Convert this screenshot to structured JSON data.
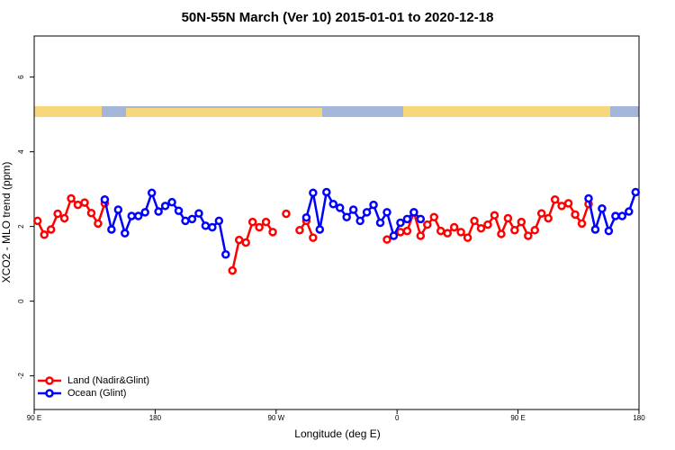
{
  "chart_data": {
    "type": "line",
    "title": "50N-55N March (Ver 10)   2015-01-01 to 2020-12-18",
    "x_label": "Longitude (deg E)",
    "y_label": "XCO2 - MLO trend (ppm)",
    "xlim": [
      90,
      540
    ],
    "xticks": [
      {
        "value": 90,
        "label": "90 E"
      },
      {
        "value": 180,
        "label": "180"
      },
      {
        "value": 270,
        "label": "90 W"
      },
      {
        "value": 360,
        "label": "0"
      },
      {
        "value": 450,
        "label": "90 E"
      },
      {
        "value": 540,
        "label": "180"
      }
    ],
    "ylim": [
      -2.9,
      7.1
    ],
    "yticks": [
      -2,
      0,
      2,
      4,
      6
    ],
    "legend": "bottom-left",
    "x": [
      92.5,
      97.5,
      102.5,
      107.5,
      112.5,
      117.5,
      122.5,
      127.5,
      132.5,
      137.5,
      142.5,
      147.5,
      152.5,
      157.5,
      162.5,
      167.5,
      172.5,
      177.5,
      182.5,
      187.5,
      192.5,
      197.5,
      202.5,
      207.5,
      212.5,
      217.5,
      222.5,
      227.5,
      232.5,
      237.5,
      242.5,
      247.5,
      252.5,
      257.5,
      262.5,
      267.5,
      272.5,
      277.5,
      282.5,
      287.5,
      292.5,
      297.5,
      302.5,
      307.5,
      312.5,
      317.5,
      322.5,
      327.5,
      332.5,
      337.5,
      342.5,
      347.5,
      352.5,
      357.5,
      362.5,
      367.5,
      372.5,
      377.5,
      382.5,
      387.5,
      392.5,
      397.5,
      402.5,
      407.5,
      412.5,
      417.5,
      422.5,
      427.5,
      432.5,
      437.5,
      442.5,
      447.5,
      452.5,
      457.5,
      462.5,
      467.5,
      472.5,
      477.5,
      482.5,
      487.5,
      492.5,
      497.5,
      502.5,
      507.5,
      512.5,
      517.5,
      522.5,
      527.5,
      532.5,
      537.5
    ],
    "series": [
      {
        "name": "Land (Nadir&Glint)",
        "color": "#ff0000",
        "values": [
          2.15,
          1.78,
          1.92,
          2.34,
          2.22,
          2.75,
          2.58,
          2.64,
          2.36,
          2.08,
          2.62,
          null,
          null,
          null,
          null,
          null,
          null,
          null,
          null,
          null,
          null,
          null,
          null,
          null,
          null,
          null,
          null,
          null,
          null,
          0.82,
          1.64,
          1.57,
          2.12,
          1.98,
          2.12,
          1.85,
          null,
          2.34,
          null,
          1.9,
          2.15,
          1.7,
          null,
          null,
          null,
          null,
          null,
          null,
          null,
          null,
          null,
          null,
          1.65,
          null,
          1.85,
          1.88,
          2.38,
          1.75,
          2.05,
          2.25,
          1.88,
          1.82,
          1.98,
          1.85,
          1.7,
          2.15,
          1.95,
          2.05,
          2.3,
          1.8,
          2.22,
          1.9,
          2.12,
          1.75,
          1.9,
          2.35,
          2.22,
          2.72,
          2.55,
          2.62,
          2.32,
          2.08,
          2.6,
          null,
          null,
          null,
          null,
          null,
          null,
          null
        ]
      },
      {
        "name": "Ocean (Glint)",
        "color": "#0000ff",
        "values": [
          null,
          null,
          null,
          null,
          null,
          null,
          null,
          null,
          null,
          null,
          2.72,
          1.92,
          2.45,
          1.82,
          2.28,
          2.28,
          2.38,
          2.9,
          2.4,
          2.55,
          2.65,
          2.42,
          2.15,
          2.2,
          2.35,
          2.02,
          1.98,
          2.15,
          1.25,
          null,
          null,
          null,
          null,
          null,
          null,
          null,
          null,
          null,
          null,
          null,
          2.24,
          2.9,
          1.92,
          2.92,
          2.6,
          2.5,
          2.25,
          2.45,
          2.15,
          2.38,
          2.58,
          2.1,
          2.38,
          1.75,
          2.1,
          2.2,
          2.38,
          2.2,
          null,
          null,
          null,
          null,
          null,
          null,
          null,
          null,
          null,
          null,
          null,
          null,
          null,
          null,
          null,
          null,
          null,
          null,
          null,
          null,
          null,
          null,
          null,
          null,
          2.75,
          1.92,
          2.48,
          1.88,
          2.28,
          2.28,
          2.4,
          2.92
        ]
      }
    ]
  }
}
